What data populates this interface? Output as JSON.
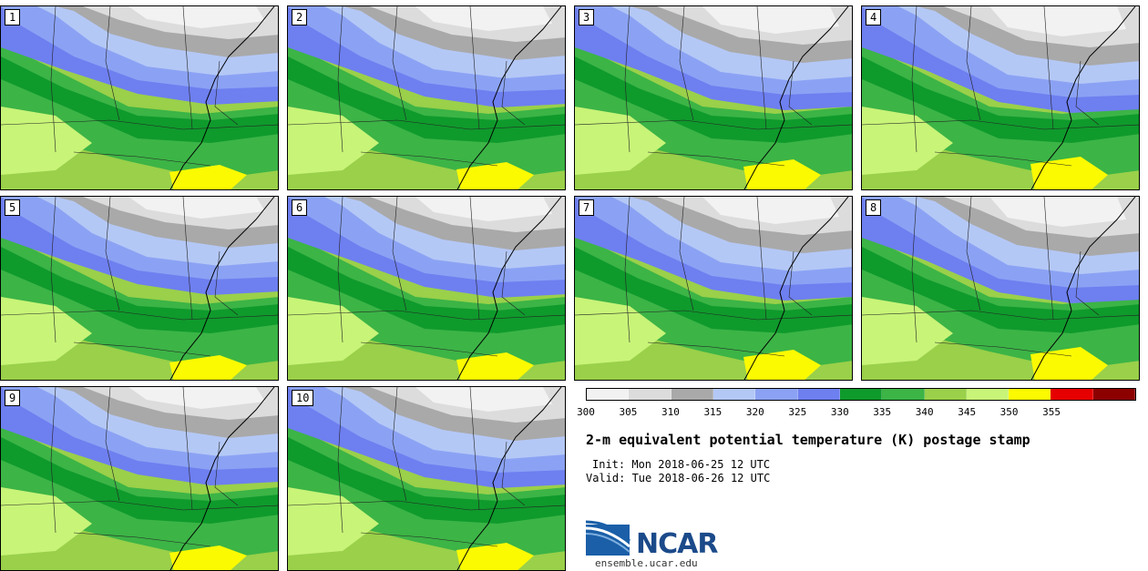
{
  "panels": [
    {
      "label": "1"
    },
    {
      "label": "2"
    },
    {
      "label": "3"
    },
    {
      "label": "4"
    },
    {
      "label": "5"
    },
    {
      "label": "6"
    },
    {
      "label": "7"
    },
    {
      "label": "8"
    },
    {
      "label": "9"
    },
    {
      "label": "10"
    }
  ],
  "colorbar": {
    "ticks": [
      "300",
      "305",
      "310",
      "315",
      "320",
      "325",
      "330",
      "335",
      "340",
      "345",
      "350",
      "355"
    ],
    "colors": [
      "#f2f2f2",
      "#dcdcdc",
      "#a9a9a9",
      "#b4c8f6",
      "#8ba2f4",
      "#6e7ff0",
      "#0f9a2c",
      "#3cb446",
      "#9ad04a",
      "#c8f478",
      "#fbfa00",
      "#e60000",
      "#8c0000"
    ]
  },
  "title": "2-m equivalent potential temperature (K) postage stamp",
  "init": "Init: Mon 2018-06-25 12 UTC",
  "valid": "Valid: Tue 2018-06-26 12 UTC",
  "logo": {
    "text": "NCAR",
    "url": "ensemble.ucar.edu"
  }
}
